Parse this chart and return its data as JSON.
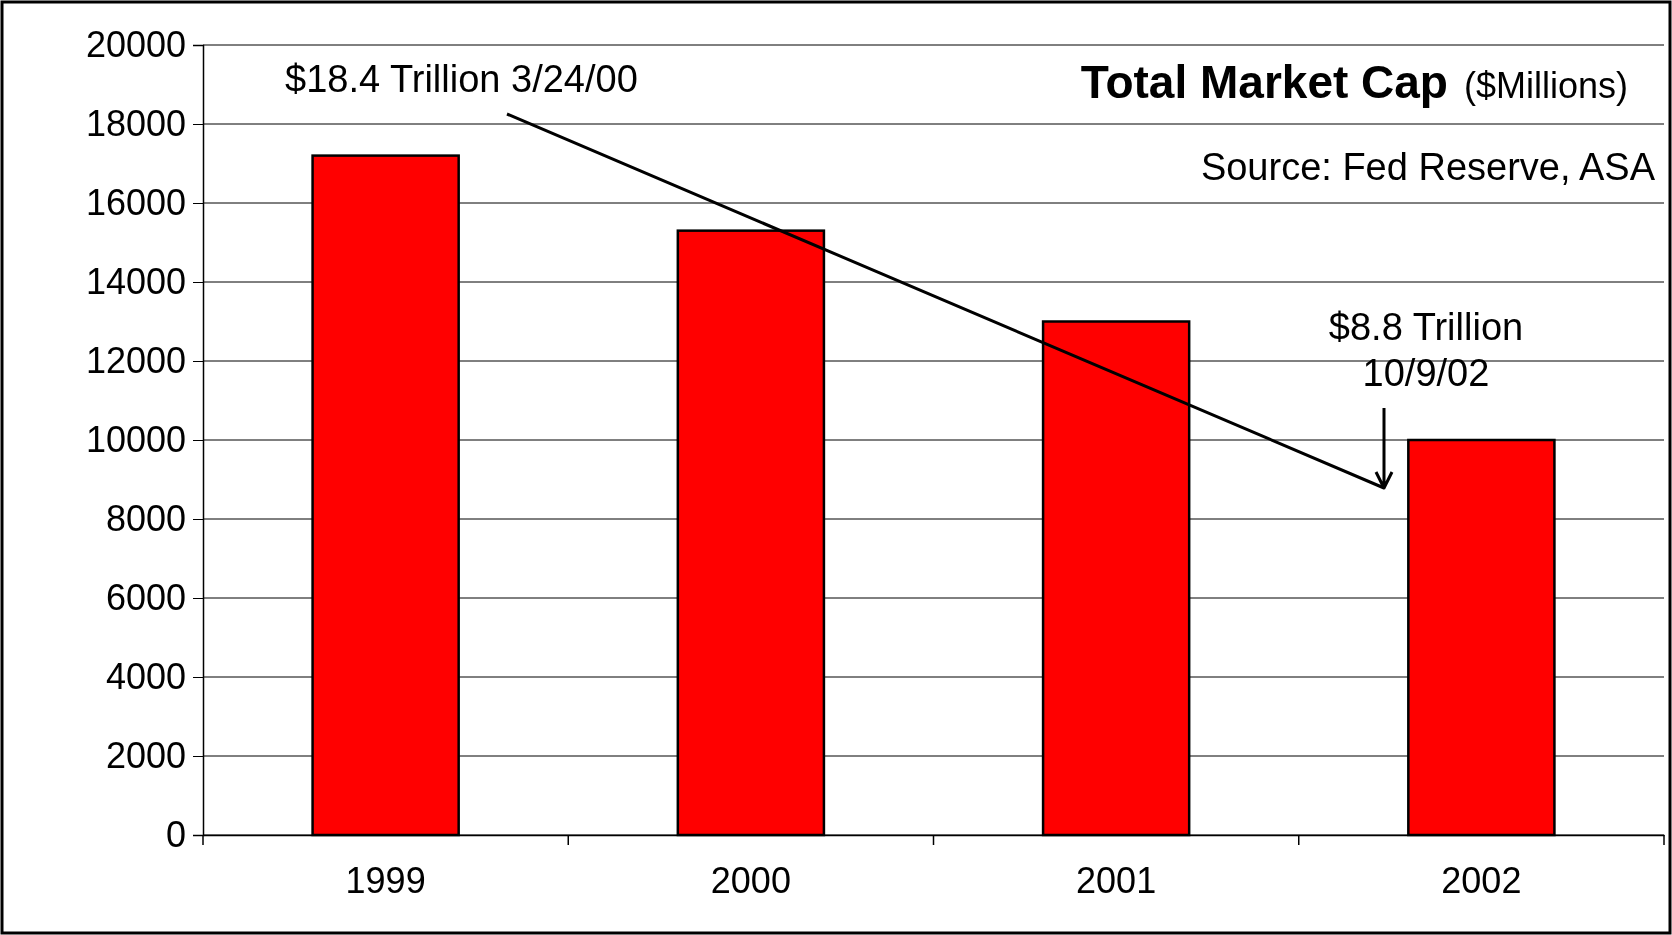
{
  "chart_data": {
    "type": "bar",
    "title": "Total Market Cap",
    "subtitle": "($Millions)",
    "categories": [
      "1999",
      "2000",
      "2001",
      "2002"
    ],
    "values": [
      17200,
      15300,
      13000,
      10000
    ],
    "color": "#ff0000",
    "ylim": [
      0,
      20000
    ],
    "yticks": [
      0,
      2000,
      4000,
      6000,
      8000,
      10000,
      12000,
      14000,
      16000,
      18000,
      20000
    ],
    "grid": "y",
    "annotations": [
      "$18.4 Trillion 3/24/00",
      "$8.8 Trillion\n10/9/02",
      "Source: Fed Reserve, ASA"
    ]
  }
}
